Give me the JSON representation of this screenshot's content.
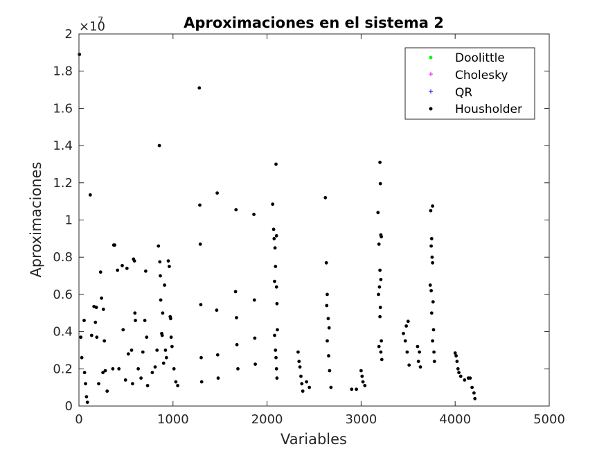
{
  "chart_data": {
    "type": "scatter",
    "title": "Aproximaciones en el sistema 2",
    "xlabel": "Variables",
    "ylabel": "Aproximaciones",
    "xlim": [
      0,
      5000
    ],
    "ylim": [
      0,
      20000000
    ],
    "xticks": [
      0,
      1000,
      2000,
      3000,
      4000,
      5000
    ],
    "xtick_labels": [
      "0",
      "1000",
      "2000",
      "3000",
      "4000",
      "5000"
    ],
    "yticks": [
      0,
      2000000,
      4000000,
      6000000,
      8000000,
      10000000,
      12000000,
      14000000,
      16000000,
      18000000,
      20000000
    ],
    "ytick_labels": [
      "0",
      "0.2",
      "0.4",
      "0.6",
      "0.8",
      "1",
      "1.2",
      "1.4",
      "1.6",
      "1.8",
      "2"
    ],
    "y_exponent_base": "×10",
    "y_exponent_power": "7",
    "grid": false,
    "legend_location": "top-right",
    "series": [
      {
        "name": "Doolittle",
        "marker": "point",
        "color": "#00ff00"
      },
      {
        "name": "Cholesky",
        "marker": "plus",
        "color": "#ff00ff"
      },
      {
        "name": "QR",
        "marker": "plus",
        "color": "#0000ff"
      },
      {
        "name": "Housholder",
        "marker": "point",
        "color": "#000000",
        "points": [
          [
            5,
            18900000
          ],
          [
            20,
            3700000
          ],
          [
            30,
            2600000
          ],
          [
            55,
            4600000
          ],
          [
            60,
            1800000
          ],
          [
            70,
            1200000
          ],
          [
            80,
            500000
          ],
          [
            90,
            200000
          ],
          [
            120,
            11350000
          ],
          [
            135,
            3800000
          ],
          [
            160,
            5350000
          ],
          [
            175,
            4500000
          ],
          [
            185,
            5300000
          ],
          [
            190,
            3700000
          ],
          [
            210,
            1200000
          ],
          [
            230,
            7200000
          ],
          [
            240,
            5800000
          ],
          [
            255,
            1800000
          ],
          [
            260,
            5200000
          ],
          [
            270,
            3500000
          ],
          [
            280,
            1900000
          ],
          [
            300,
            800000
          ],
          [
            360,
            2000000
          ],
          [
            370,
            8650000
          ],
          [
            380,
            8650000
          ],
          [
            410,
            7300000
          ],
          [
            425,
            2000000
          ],
          [
            460,
            7550000
          ],
          [
            470,
            4100000
          ],
          [
            495,
            1400000
          ],
          [
            510,
            7400000
          ],
          [
            525,
            2800000
          ],
          [
            560,
            3000000
          ],
          [
            570,
            1200000
          ],
          [
            580,
            7900000
          ],
          [
            590,
            7800000
          ],
          [
            595,
            5000000
          ],
          [
            600,
            4600000
          ],
          [
            630,
            2000000
          ],
          [
            660,
            1500000
          ],
          [
            680,
            2900000
          ],
          [
            700,
            4600000
          ],
          [
            710,
            7250000
          ],
          [
            720,
            3700000
          ],
          [
            730,
            1100000
          ],
          [
            780,
            1800000
          ],
          [
            810,
            2100000
          ],
          [
            830,
            3000000
          ],
          [
            845,
            8600000
          ],
          [
            855,
            14000000
          ],
          [
            860,
            7750000
          ],
          [
            865,
            7000000
          ],
          [
            870,
            5700000
          ],
          [
            880,
            3900000
          ],
          [
            885,
            3800000
          ],
          [
            890,
            5000000
          ],
          [
            900,
            2300000
          ],
          [
            910,
            6500000
          ],
          [
            920,
            3000000
          ],
          [
            930,
            2600000
          ],
          [
            950,
            7800000
          ],
          [
            960,
            7500000
          ],
          [
            970,
            4800000
          ],
          [
            975,
            4700000
          ],
          [
            980,
            3700000
          ],
          [
            990,
            3200000
          ],
          [
            1010,
            2000000
          ],
          [
            1030,
            1300000
          ],
          [
            1050,
            1100000
          ],
          [
            1280,
            17100000
          ],
          [
            1285,
            10800000
          ],
          [
            1290,
            8700000
          ],
          [
            1295,
            5450000
          ],
          [
            1300,
            2600000
          ],
          [
            1305,
            1300000
          ],
          [
            1470,
            11450000
          ],
          [
            1465,
            5150000
          ],
          [
            1475,
            2750000
          ],
          [
            1480,
            1500000
          ],
          [
            1670,
            10550000
          ],
          [
            1665,
            6150000
          ],
          [
            1675,
            4750000
          ],
          [
            1680,
            3300000
          ],
          [
            1690,
            2000000
          ],
          [
            1860,
            10300000
          ],
          [
            1865,
            5700000
          ],
          [
            1870,
            3650000
          ],
          [
            1875,
            2250000
          ],
          [
            2060,
            10850000
          ],
          [
            2070,
            9500000
          ],
          [
            2075,
            9000000
          ],
          [
            2085,
            8500000
          ],
          [
            2095,
            13000000
          ],
          [
            2100,
            9150000
          ],
          [
            2090,
            7500000
          ],
          [
            2080,
            6700000
          ],
          [
            2100,
            6400000
          ],
          [
            2105,
            5500000
          ],
          [
            2110,
            4100000
          ],
          [
            2080,
            3800000
          ],
          [
            2090,
            3000000
          ],
          [
            2095,
            2600000
          ],
          [
            2100,
            2000000
          ],
          [
            2105,
            1500000
          ],
          [
            2330,
            2900000
          ],
          [
            2340,
            2400000
          ],
          [
            2350,
            2100000
          ],
          [
            2360,
            1600000
          ],
          [
            2370,
            1200000
          ],
          [
            2380,
            800000
          ],
          [
            2420,
            1300000
          ],
          [
            2450,
            1000000
          ],
          [
            2620,
            11200000
          ],
          [
            2630,
            7700000
          ],
          [
            2640,
            6000000
          ],
          [
            2635,
            5400000
          ],
          [
            2650,
            4700000
          ],
          [
            2660,
            4200000
          ],
          [
            2640,
            3500000
          ],
          [
            2655,
            2700000
          ],
          [
            2665,
            1900000
          ],
          [
            2680,
            1000000
          ],
          [
            2900,
            900000
          ],
          [
            2950,
            900000
          ],
          [
            3000,
            1900000
          ],
          [
            3010,
            1600000
          ],
          [
            3020,
            1300000
          ],
          [
            3040,
            1100000
          ],
          [
            3180,
            10400000
          ],
          [
            3200,
            13100000
          ],
          [
            3205,
            11950000
          ],
          [
            3210,
            9200000
          ],
          [
            3215,
            9100000
          ],
          [
            3190,
            8700000
          ],
          [
            3200,
            7300000
          ],
          [
            3210,
            6800000
          ],
          [
            3195,
            6400000
          ],
          [
            3185,
            6000000
          ],
          [
            3205,
            5300000
          ],
          [
            3200,
            4800000
          ],
          [
            3215,
            3500000
          ],
          [
            3190,
            3200000
          ],
          [
            3210,
            2900000
          ],
          [
            3220,
            2500000
          ],
          [
            3450,
            3900000
          ],
          [
            3480,
            4300000
          ],
          [
            3500,
            4550000
          ],
          [
            3470,
            3500000
          ],
          [
            3490,
            2900000
          ],
          [
            3510,
            2200000
          ],
          [
            3600,
            3200000
          ],
          [
            3620,
            2900000
          ],
          [
            3610,
            2400000
          ],
          [
            3630,
            2100000
          ],
          [
            3740,
            10500000
          ],
          [
            3760,
            10750000
          ],
          [
            3750,
            9000000
          ],
          [
            3745,
            8600000
          ],
          [
            3755,
            8000000
          ],
          [
            3760,
            7700000
          ],
          [
            3735,
            6500000
          ],
          [
            3745,
            6200000
          ],
          [
            3765,
            5600000
          ],
          [
            3750,
            5000000
          ],
          [
            3770,
            4100000
          ],
          [
            3760,
            3500000
          ],
          [
            3775,
            2900000
          ],
          [
            3780,
            2400000
          ],
          [
            4000,
            2850000
          ],
          [
            4010,
            2700000
          ],
          [
            4020,
            2400000
          ],
          [
            4030,
            2000000
          ],
          [
            4040,
            1800000
          ],
          [
            4060,
            1600000
          ],
          [
            4100,
            1400000
          ],
          [
            4140,
            1500000
          ],
          [
            4160,
            1500000
          ],
          [
            4180,
            1000000
          ],
          [
            4200,
            700000
          ],
          [
            4210,
            400000
          ]
        ]
      }
    ]
  }
}
